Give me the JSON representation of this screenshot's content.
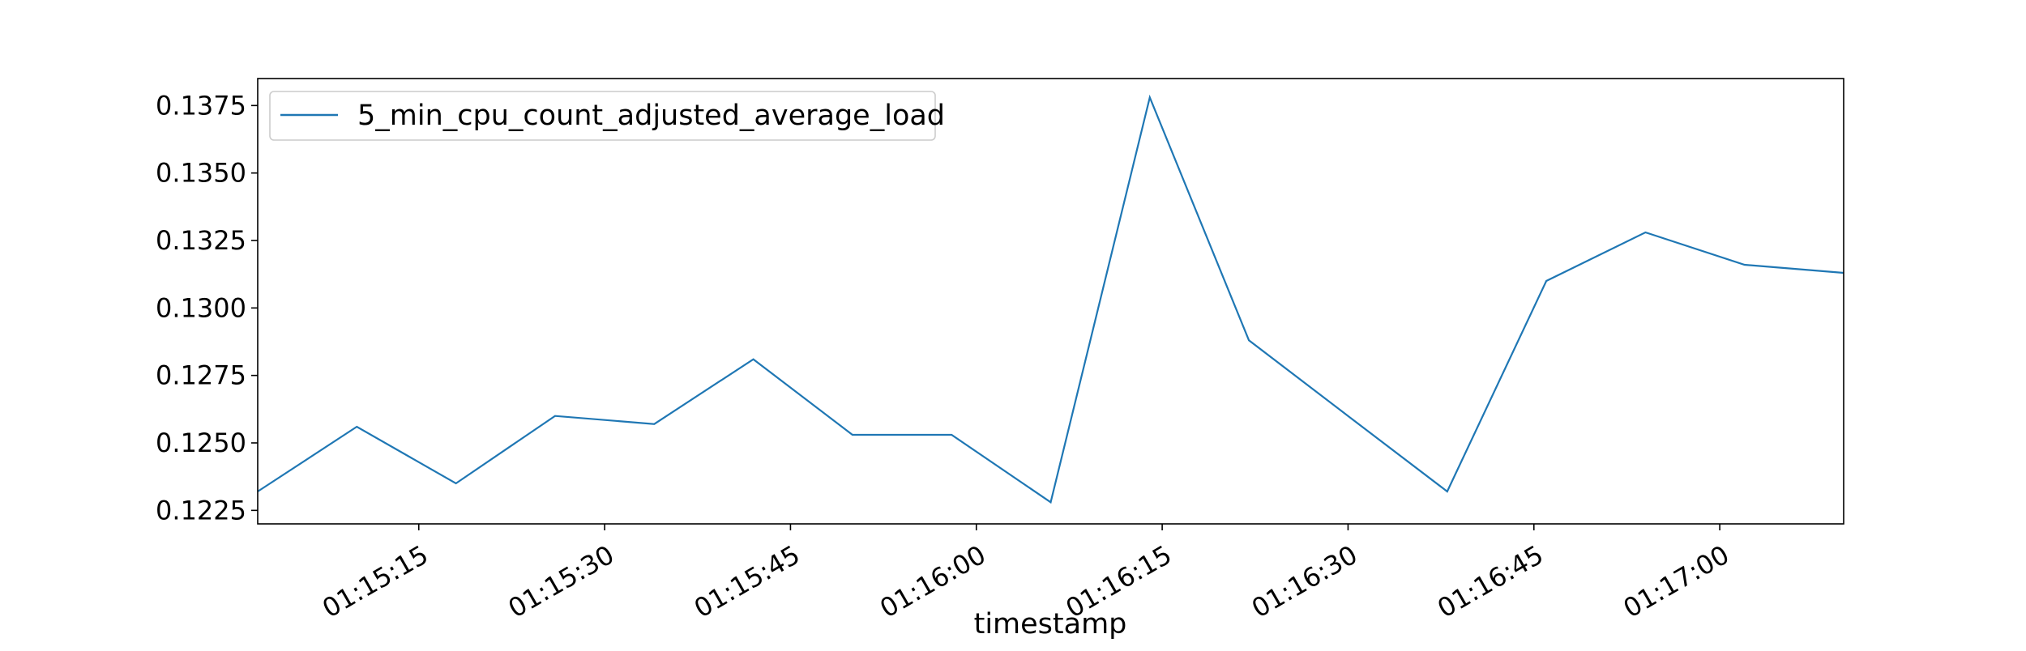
{
  "chart_data": {
    "type": "line",
    "title": "",
    "xlabel": "timestamp",
    "ylabel": "",
    "x_tick_labels": [
      "01:15:15",
      "01:15:30",
      "01:15:45",
      "01:16:00",
      "01:16:15",
      "01:16:30",
      "01:16:45",
      "01:17:00"
    ],
    "y_tick_labels": [
      "0.1225",
      "0.1250",
      "0.1275",
      "0.1300",
      "0.1325",
      "0.1350",
      "0.1375"
    ],
    "xlim": [
      "01:15:02",
      "01:17:10"
    ],
    "ylim": [
      0.122,
      0.1385
    ],
    "grid": false,
    "legend_position": "top-left",
    "colors": {
      "series": "#1f77b4",
      "axes": "#000000",
      "background": "#ffffff"
    },
    "series": [
      {
        "name": "5_min_cpu_count_adjusted_average_load",
        "x": [
          "01:15:02",
          "01:15:10",
          "01:15:18",
          "01:15:26",
          "01:15:34",
          "01:15:42",
          "01:15:50",
          "01:15:58",
          "01:16:06",
          "01:16:14",
          "01:16:22",
          "01:16:30",
          "01:16:38",
          "01:16:46",
          "01:16:54",
          "01:17:02",
          "01:17:10"
        ],
        "values": [
          0.1232,
          0.1256,
          0.1235,
          0.126,
          0.1257,
          0.1281,
          0.1253,
          0.1253,
          0.1228,
          0.1378,
          0.1288,
          0.126,
          0.1232,
          0.131,
          0.1328,
          0.1316,
          0.1313
        ]
      }
    ]
  }
}
